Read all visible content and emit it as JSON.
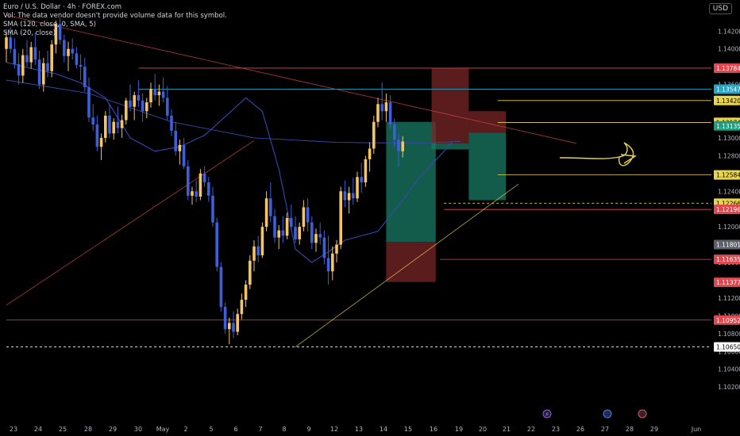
{
  "header": {
    "title": "Euro / U.S. Dollar · 4h · FOREX.com",
    "vol_note": "Vol: The data vendor doesn't provide volume data for this symbol.",
    "sma1": "SMA (120, close, 0, SMA, 5)",
    "sma2": "SMA (20, close)",
    "currency": "USD"
  },
  "colors": {
    "background": "#000000",
    "bull": "#f3c566",
    "bear": "#3d5fd9",
    "sma": "#3948b0",
    "red_line": "#e0484f",
    "yellow_line": "#e8d44d",
    "teal_zone": "#1a7a63",
    "red_zone": "#7a2528",
    "grid_text": "#b2b5be"
  },
  "chart_data": {
    "type": "candlestick",
    "symbol": "EUR/USD",
    "timeframe": "4h",
    "ylim": [
      1.1005,
      1.1455
    ],
    "y_ticks": [
      1.142,
      1.14,
      1.138,
      1.136,
      1.134,
      1.132,
      1.13,
      1.128,
      1.126,
      1.124,
      1.122,
      1.12,
      1.118,
      1.116,
      1.114,
      1.112,
      1.11,
      1.108,
      1.106,
      1.104,
      1.102
    ],
    "x_ticks": [
      "23",
      "24",
      "25",
      "28",
      "29",
      "30",
      "May",
      "2",
      "5",
      "6",
      "7",
      "8",
      "9",
      "12",
      "13",
      "14",
      "15",
      "16",
      "19",
      "20",
      "21",
      "22",
      "23",
      "26",
      "27",
      "28",
      "29",
      "Jun"
    ],
    "price_labels": [
      {
        "value": "1.13784",
        "color": "#e0484f"
      },
      {
        "value": "1.13547",
        "color": "#26a6c4"
      },
      {
        "value": "1.13420",
        "color": "#e8d44d"
      },
      {
        "value": "1.13174",
        "color": "#e8d44d"
      },
      {
        "value": "1.13135",
        "color": "#1f9c7e"
      },
      {
        "value": "1.12584",
        "color": "#e8d44d"
      },
      {
        "value": "1.12266",
        "color": "#e8d44d"
      },
      {
        "value": "1.12196",
        "color": "#e0484f"
      },
      {
        "value": "1.11801",
        "color": "#5d606b"
      },
      {
        "value": "1.11635",
        "color": "#e0484f"
      },
      {
        "value": "1.11377",
        "color": "#e0484f"
      },
      {
        "value": "1.10952",
        "color": "#e0484f"
      },
      {
        "value": "1.10650",
        "color": "#ffffff"
      }
    ],
    "horizontal_lines": [
      {
        "y": 1.13784,
        "color": "#e0484f",
        "x_from": 32
      },
      {
        "y": 1.13547,
        "color": "#26a6c4",
        "x_from": 32
      },
      {
        "y": 1.1342,
        "color": "#e8d44d",
        "x_from": 119
      },
      {
        "y": 1.13174,
        "color": "#e8d44d",
        "x_from": 119
      },
      {
        "y": 1.12584,
        "color": "#e8d44d",
        "x_from": 119
      },
      {
        "y": 1.12266,
        "color": "#e8d44d",
        "x_from": 106,
        "dashed": true
      },
      {
        "y": 1.12196,
        "color": "#e0484f",
        "x_from": 106
      },
      {
        "y": 1.11635,
        "color": "#e0484f",
        "x_from": 105
      },
      {
        "y": 1.10952,
        "color": "#e0484f",
        "x_from": 0
      },
      {
        "y": 1.1065,
        "color": "#ffffff",
        "x_from": 0,
        "dashed": true
      }
    ],
    "trend_lines": [
      {
        "from": [
          0,
          1.1112
        ],
        "to": [
          60,
          1.1297
        ],
        "color": "#e0484f"
      },
      {
        "from": [
          0,
          1.1438
        ],
        "to": [
          138,
          1.1294
        ],
        "color": "#e0484f"
      },
      {
        "from": [
          70,
          1.1065
        ],
        "to": [
          124,
          1.1248
        ],
        "color": "#e8d44d"
      }
    ],
    "positions": [
      {
        "type": "long",
        "x_from": 92,
        "x_to": 104,
        "entry": 1.1183,
        "target": 1.1318,
        "stop": 1.1138
      },
      {
        "type": "short",
        "x_from": 103,
        "x_to": 112,
        "entry": 1.1294,
        "target": 1.1287,
        "stop": 1.1378
      },
      {
        "type": "short",
        "x_from": 112,
        "x_to": 121,
        "entry": 1.1306,
        "target": 1.123,
        "stop": 1.133
      }
    ],
    "sma20": [
      [
        0,
        1.1385
      ],
      [
        6,
        1.1378
      ],
      [
        12,
        1.1372
      ],
      [
        18,
        1.1362
      ],
      [
        24,
        1.1345
      ],
      [
        30,
        1.13
      ],
      [
        36,
        1.1285
      ],
      [
        42,
        1.129
      ],
      [
        48,
        1.1303
      ],
      [
        54,
        1.1328
      ],
      [
        58,
        1.1345
      ],
      [
        62,
        1.133
      ],
      [
        66,
        1.1265
      ],
      [
        70,
        1.1175
      ],
      [
        74,
        1.116
      ],
      [
        78,
        1.1172
      ],
      [
        82,
        1.1185
      ],
      [
        86,
        1.119
      ],
      [
        90,
        1.1195
      ],
      [
        96,
        1.123
      ],
      [
        100,
        1.1255
      ],
      [
        104,
        1.1275
      ],
      [
        108,
        1.1295
      ]
    ],
    "sma120": [
      [
        0,
        1.1365
      ],
      [
        20,
        1.135
      ],
      [
        40,
        1.1318
      ],
      [
        60,
        1.13
      ],
      [
        80,
        1.1295
      ],
      [
        100,
        1.1294
      ],
      [
        110,
        1.1296
      ]
    ],
    "candles": [
      [
        1.14,
        1.142,
        1.1385,
        1.1413
      ],
      [
        1.1413,
        1.1425,
        1.1395,
        1.14
      ],
      [
        1.14,
        1.1412,
        1.1378,
        1.1383
      ],
      [
        1.1383,
        1.1395,
        1.136,
        1.137
      ],
      [
        1.137,
        1.14,
        1.1362,
        1.1393
      ],
      [
        1.1393,
        1.141,
        1.138,
        1.1385
      ],
      [
        1.1385,
        1.1408,
        1.1378,
        1.1402
      ],
      [
        1.1402,
        1.1418,
        1.1382,
        1.1388
      ],
      [
        1.1388,
        1.1398,
        1.1355,
        1.136
      ],
      [
        1.136,
        1.139,
        1.1352,
        1.1384
      ],
      [
        1.1384,
        1.1398,
        1.1368,
        1.1375
      ],
      [
        1.1375,
        1.141,
        1.1368,
        1.1405
      ],
      [
        1.1405,
        1.1432,
        1.1395,
        1.1428
      ],
      [
        1.1428,
        1.1435,
        1.1405,
        1.141
      ],
      [
        1.141,
        1.1416,
        1.1385,
        1.1392
      ],
      [
        1.1392,
        1.1408,
        1.1375,
        1.14
      ],
      [
        1.14,
        1.1412,
        1.1388,
        1.1395
      ],
      [
        1.1395,
        1.1402,
        1.1378,
        1.1382
      ],
      [
        1.1382,
        1.1394,
        1.1365,
        1.138
      ],
      [
        1.138,
        1.139,
        1.1352,
        1.1357
      ],
      [
        1.1357,
        1.1368,
        1.1318,
        1.1323
      ],
      [
        1.1323,
        1.1338,
        1.1308,
        1.1315
      ],
      [
        1.1315,
        1.1325,
        1.1285,
        1.129
      ],
      [
        1.129,
        1.1305,
        1.1275,
        1.13
      ],
      [
        1.13,
        1.133,
        1.1295,
        1.1325
      ],
      [
        1.1325,
        1.1338,
        1.13,
        1.1305
      ],
      [
        1.1305,
        1.1322,
        1.1298,
        1.1318
      ],
      [
        1.1318,
        1.1335,
        1.1305,
        1.1311
      ],
      [
        1.1311,
        1.1326,
        1.13,
        1.132
      ],
      [
        1.132,
        1.1345,
        1.1315,
        1.1342
      ],
      [
        1.1342,
        1.136,
        1.133,
        1.1335
      ],
      [
        1.1335,
        1.1352,
        1.132,
        1.1348
      ],
      [
        1.1348,
        1.1365,
        1.1335,
        1.1342
      ],
      [
        1.1342,
        1.135,
        1.1318,
        1.133
      ],
      [
        1.133,
        1.1345,
        1.1322,
        1.134
      ],
      [
        1.134,
        1.1362,
        1.1334,
        1.1355
      ],
      [
        1.1355,
        1.1372,
        1.1342,
        1.1348
      ],
      [
        1.1348,
        1.136,
        1.1336,
        1.1352
      ],
      [
        1.1352,
        1.1368,
        1.134,
        1.1345
      ],
      [
        1.1345,
        1.1358,
        1.132,
        1.1325
      ],
      [
        1.1325,
        1.1332,
        1.1302,
        1.1308
      ],
      [
        1.1308,
        1.1318,
        1.128,
        1.1285
      ],
      [
        1.1285,
        1.1298,
        1.127,
        1.1292
      ],
      [
        1.1292,
        1.13,
        1.1265,
        1.1268
      ],
      [
        1.1268,
        1.1275,
        1.123,
        1.1235
      ],
      [
        1.1235,
        1.1245,
        1.1225,
        1.124
      ],
      [
        1.124,
        1.1252,
        1.1228,
        1.1234
      ],
      [
        1.1234,
        1.1265,
        1.123,
        1.126
      ],
      [
        1.126,
        1.1268,
        1.1245,
        1.125
      ],
      [
        1.125,
        1.1256,
        1.1228,
        1.1235
      ],
      [
        1.1235,
        1.1245,
        1.12,
        1.1205
      ],
      [
        1.1205,
        1.121,
        1.115,
        1.1155
      ],
      [
        1.1155,
        1.116,
        1.1105,
        1.111
      ],
      [
        1.111,
        1.1115,
        1.108,
        1.1085
      ],
      [
        1.1085,
        1.1098,
        1.1068,
        1.1092
      ],
      [
        1.1092,
        1.1105,
        1.1075,
        1.1082
      ],
      [
        1.1082,
        1.1108,
        1.1078,
        1.1102
      ],
      [
        1.1102,
        1.1125,
        1.1096,
        1.1118
      ],
      [
        1.1118,
        1.114,
        1.111,
        1.1135
      ],
      [
        1.1135,
        1.1168,
        1.113,
        1.1162
      ],
      [
        1.1162,
        1.1185,
        1.115,
        1.1178
      ],
      [
        1.1178,
        1.119,
        1.116,
        1.1168
      ],
      [
        1.1168,
        1.1205,
        1.1165,
        1.12
      ],
      [
        1.12,
        1.124,
        1.1195,
        1.1232
      ],
      [
        1.1232,
        1.125,
        1.1205,
        1.1212
      ],
      [
        1.1212,
        1.122,
        1.1182,
        1.1188
      ],
      [
        1.1188,
        1.1202,
        1.1175,
        1.1196
      ],
      [
        1.1196,
        1.1212,
        1.1182,
        1.119
      ],
      [
        1.119,
        1.1216,
        1.1186,
        1.121
      ],
      [
        1.121,
        1.1225,
        1.1195,
        1.12
      ],
      [
        1.12,
        1.1212,
        1.1182,
        1.1186
      ],
      [
        1.1186,
        1.1205,
        1.118,
        1.12
      ],
      [
        1.12,
        1.123,
        1.1195,
        1.1222
      ],
      [
        1.1222,
        1.1232,
        1.1195,
        1.1205
      ],
      [
        1.1205,
        1.1212,
        1.1175,
        1.1182
      ],
      [
        1.1182,
        1.1198,
        1.1172,
        1.1192
      ],
      [
        1.1192,
        1.1205,
        1.118,
        1.1188
      ],
      [
        1.1188,
        1.1196,
        1.1158,
        1.1165
      ],
      [
        1.1165,
        1.119,
        1.1135,
        1.115
      ],
      [
        1.115,
        1.1178,
        1.114,
        1.117
      ],
      [
        1.117,
        1.1185,
        1.116,
        1.118
      ],
      [
        1.118,
        1.1245,
        1.1175,
        1.124
      ],
      [
        1.124,
        1.1252,
        1.1222,
        1.123
      ],
      [
        1.123,
        1.1245,
        1.1215,
        1.1238
      ],
      [
        1.1238,
        1.1255,
        1.1225,
        1.1232
      ],
      [
        1.1232,
        1.1262,
        1.1228,
        1.1256
      ],
      [
        1.1256,
        1.1272,
        1.1238,
        1.125
      ],
      [
        1.125,
        1.128,
        1.1245,
        1.1276
      ],
      [
        1.1276,
        1.1295,
        1.1262,
        1.1288
      ],
      [
        1.1288,
        1.1325,
        1.1282,
        1.1318
      ],
      [
        1.1318,
        1.1345,
        1.1312,
        1.1338
      ],
      [
        1.1338,
        1.1362,
        1.132,
        1.133
      ],
      [
        1.133,
        1.135,
        1.1318,
        1.134
      ],
      [
        1.134,
        1.1348,
        1.131,
        1.1315
      ],
      [
        1.1315,
        1.1322,
        1.129,
        1.1298
      ],
      [
        1.1298,
        1.1305,
        1.1268,
        1.1285
      ],
      [
        1.1285,
        1.1302,
        1.1278,
        1.1296
      ]
    ]
  }
}
